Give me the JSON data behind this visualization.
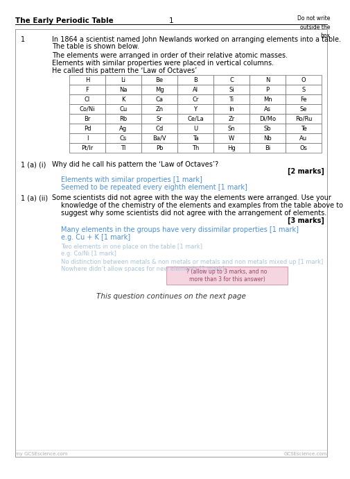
{
  "header_left": "The Early Periodic Table",
  "header_center": "1",
  "header_right": "Do not write\noutside the\nbox",
  "q_number": "1",
  "q_intro_line1": "In 1864 a scientist named John Newlands worked on arranging elements into a table.",
  "q_intro_line2": "The table is shown below.",
  "q_line1": "The elements were arranged in order of their relative atomic masses.",
  "q_line2": "Elements with similar properties were placed in vertical columns.",
  "q_line3": "He called this pattern the ‘Law of Octaves’",
  "table_data": [
    [
      "H",
      "Li",
      "Be",
      "B",
      "C",
      "N",
      "O"
    ],
    [
      "F",
      "Na",
      "Mg",
      "Al",
      "Si",
      "P",
      "S"
    ],
    [
      "Cl",
      "K",
      "Ca",
      "Cr",
      "Ti",
      "Mn",
      "Fe"
    ],
    [
      "Co/Ni",
      "Cu",
      "Zn",
      "Y",
      "In",
      "As",
      "Se"
    ],
    [
      "Br",
      "Rb",
      "Sr",
      "Ce/La",
      "Zr",
      "Di/Mo",
      "Ro/Ru"
    ],
    [
      "Pd",
      "Ag",
      "Cd",
      "U",
      "Sn",
      "Sb",
      "Te"
    ],
    [
      "I",
      "Cs",
      "Ba/V",
      "Ta",
      "W",
      "Nb",
      "Au"
    ],
    [
      "Pt/Ir",
      "Tl",
      "Pb",
      "Th",
      "Hg",
      "Bi",
      "Os"
    ]
  ],
  "q1a_i_label": "1 (a) (i)",
  "q1a_i_text": "Why did he call his pattern the ‘Law of Octaves’?",
  "q1a_i_marks": "[2 marks]",
  "q1a_i_ans1": "Elements with similar properties [1 mark]",
  "q1a_i_ans2": "Seemed to be repeated every eighth element [1 mark]",
  "q1a_ii_label": "1 (a) (ii)",
  "q1a_ii_text_line1": "Some scientists did not agree with the way the elements were arranged. Use your",
  "q1a_ii_text_line2": "knowledge of the chemistry of the elements and examples from the table above to",
  "q1a_ii_text_line3": "suggest why some scientists did not agree with the arrangement of elements.",
  "q1a_ii_marks": "[3 marks]",
  "q1a_ii_ans1_line1": "Many elements in the groups have very dissimilar properties [1 mark]",
  "q1a_ii_ans1_line2": "e.g. Cu + K [1 mark]",
  "q1a_ii_ans2_line1": "Two elements in one place on the table [1 mark]",
  "q1a_ii_ans2_line2": "e.g. Co/Ni [1 mark]",
  "q1a_ii_ans3": "No distinction between metals & non metals or metals and non metals mixed up [1 mark]",
  "q1a_ii_ans4": "Nowhere didn’t allow spaces for new elements [1 mark]",
  "pink_box_text_line1": "? (allow up to 3 marks, and no",
  "pink_box_text_line2": "more than 3 for this answer)",
  "continue_text": "This question continues on the next page",
  "footer_left": "my GCSEscience.com",
  "footer_right": "GCSEscience.com",
  "bg_color": "#ffffff",
  "answer_blue": "#4a90d9",
  "blur_blue": "#aac4dd",
  "table_border": "#666666",
  "header_bold_size": 7.5,
  "body_font_size": 7.0,
  "small_font_size": 6.0
}
